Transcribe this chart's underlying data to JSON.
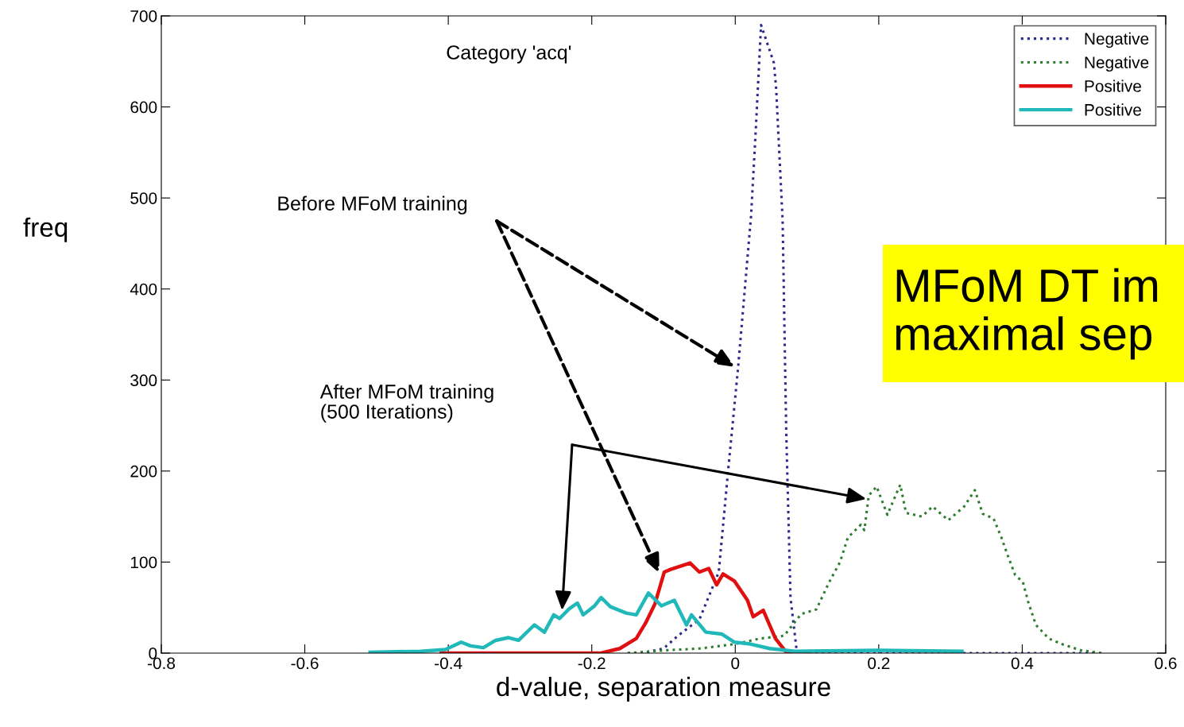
{
  "chart_data": {
    "type": "line",
    "title": "Category 'acq'",
    "xlabel": "d-value, separation measure",
    "ylabel": "freq",
    "xlim": [
      -0.8,
      0.6
    ],
    "xticks": [
      -0.8,
      -0.6,
      -0.4,
      -0.2,
      0,
      0.2,
      0.4,
      0.6
    ],
    "ylim": [
      0,
      700
    ],
    "yticks": [
      0,
      100,
      200,
      300,
      400,
      500,
      600,
      700
    ],
    "grid": false,
    "legend": "top right",
    "marker": "none",
    "annotations": [
      "Before MFoM training",
      "After MFoM training\n(500 Iterations)",
      "MFoM DT im\nmaximal sep"
    ],
    "series": [
      {
        "name": "Negative",
        "color": "#2a2a8c",
        "line_style": "dotted",
        "x": [
          -0.15,
          -0.13,
          -0.1,
          -0.08,
          -0.05,
          -0.023,
          -0.01,
          0.004,
          0.022,
          0.028,
          0.036,
          0.054,
          0.057,
          0.066,
          0.071,
          0.077,
          0.086,
          0.2,
          0.5
        ],
        "values": [
          0,
          0,
          5,
          19,
          37,
          89,
          200,
          314,
          480,
          566,
          690,
          648,
          620,
          476,
          245,
          61,
          0,
          0,
          0
        ]
      },
      {
        "name": "Negative",
        "color": "#2e7d2e",
        "line_style": "dotted",
        "x": [
          -0.15,
          -0.1,
          -0.05,
          0,
          0.034,
          0.068,
          0.092,
          0.113,
          0.131,
          0.146,
          0.157,
          0.175,
          0.18,
          0.186,
          0.197,
          0.212,
          0.23,
          0.238,
          0.26,
          0.275,
          0.297,
          0.319,
          0.334,
          0.345,
          0.36,
          0.371,
          0.379,
          0.39,
          0.401,
          0.408,
          0.419,
          0.437,
          0.455,
          0.482,
          0.512
        ],
        "values": [
          0,
          3,
          5,
          10,
          16,
          19,
          43,
          48,
          78,
          100,
          127,
          141,
          135,
          173,
          183,
          152,
          185,
          154,
          150,
          161,
          146,
          161,
          179,
          153,
          148,
          127,
          109,
          86,
          78,
          57,
          31,
          16,
          10,
          3,
          0
        ]
      },
      {
        "name": "Positive",
        "color": "#e01010",
        "line_style": "solid",
        "x": [
          -0.41,
          -0.187,
          -0.161,
          -0.138,
          -0.125,
          -0.112,
          -0.099,
          -0.09,
          -0.063,
          -0.05,
          -0.037,
          -0.026,
          -0.017,
          -0.001,
          0.017,
          0.025,
          0.039,
          0.056,
          0.07,
          0.1
        ],
        "values": [
          0,
          0,
          5,
          16,
          33,
          54,
          89,
          92,
          99,
          89,
          93,
          75,
          87,
          79,
          58,
          40,
          47,
          16,
          2,
          0
        ]
      },
      {
        "name": "Positive",
        "color": "#20b8b8",
        "line_style": "solid",
        "x": [
          -0.509,
          -0.438,
          -0.404,
          -0.382,
          -0.369,
          -0.351,
          -0.334,
          -0.316,
          -0.302,
          -0.28,
          -0.266,
          -0.253,
          -0.245,
          -0.231,
          -0.22,
          -0.212,
          -0.196,
          -0.187,
          -0.174,
          -0.152,
          -0.138,
          -0.121,
          -0.103,
          -0.085,
          -0.068,
          -0.061,
          -0.041,
          -0.019,
          -0.001,
          0.021,
          0.048,
          0.083,
          0.2,
          0.316
        ],
        "values": [
          1,
          2,
          4,
          12,
          8,
          6,
          14,
          17,
          14,
          31,
          23,
          42,
          38,
          49,
          55,
          42,
          52,
          61,
          51,
          44,
          42,
          66,
          52,
          58,
          31,
          42,
          23,
          21,
          12,
          10,
          5,
          2,
          3,
          2
        ]
      }
    ]
  }
}
